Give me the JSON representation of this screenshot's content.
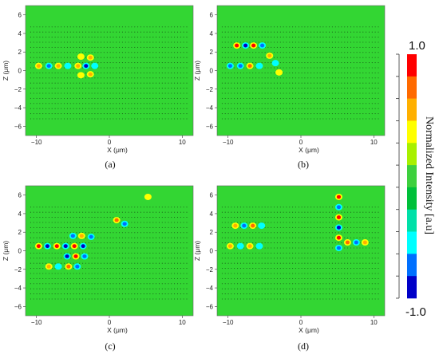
{
  "chart_data": [
    {
      "type": "heatmap",
      "caption": "(a)",
      "xlabel": "X (μm)",
      "ylabel": "Z (μm)",
      "xlim": [
        -11.5,
        11.5
      ],
      "ylim": [
        -7,
        7
      ],
      "xticks": [
        -10,
        0,
        10
      ],
      "yticks": [
        -6,
        -4,
        -2,
        0,
        2,
        4,
        6
      ],
      "xtick_labels": [
        "−10",
        "0",
        "10"
      ],
      "ytick_labels": [
        "−6",
        "−4",
        "−2",
        "0",
        "2",
        "4",
        "6"
      ],
      "hotspots": [
        {
          "x": -9.7,
          "z": 0.5,
          "v": 0.7
        },
        {
          "x": -8.3,
          "z": 0.5,
          "v": -0.7
        },
        {
          "x": -7.0,
          "z": 0.5,
          "v": 0.7
        },
        {
          "x": -5.7,
          "z": 0.5,
          "v": -0.6
        },
        {
          "x": -4.3,
          "z": 0.5,
          "v": 0.6
        },
        {
          "x": -3.2,
          "z": 0.5,
          "v": -0.9
        },
        {
          "x": -2.6,
          "z": 1.4,
          "v": 0.6
        },
        {
          "x": -2.6,
          "z": -0.4,
          "v": 0.6
        },
        {
          "x": -2.0,
          "z": 0.5,
          "v": -0.6
        },
        {
          "x": -3.9,
          "z": 1.5,
          "v": 0.4
        },
        {
          "x": -3.9,
          "z": -0.5,
          "v": 0.4
        }
      ]
    },
    {
      "type": "heatmap",
      "caption": "(b)",
      "xlabel": "X (μm)",
      "ylabel": "Z (μm)",
      "xlim": [
        -11.5,
        11.5
      ],
      "ylim": [
        -7,
        7
      ],
      "xticks": [
        -10,
        0,
        10
      ],
      "yticks": [
        -6,
        -4,
        -2,
        0,
        2,
        4,
        6
      ],
      "xtick_labels": [
        "−10",
        "0",
        "10"
      ],
      "ytick_labels": [
        "−6",
        "−4",
        "−2",
        "0",
        "2",
        "4",
        "6"
      ],
      "hotspots": [
        {
          "x": -9.7,
          "z": 0.5,
          "v": -0.8
        },
        {
          "x": -8.3,
          "z": 0.5,
          "v": -0.7
        },
        {
          "x": -7.0,
          "z": 0.5,
          "v": 0.8
        },
        {
          "x": -5.7,
          "z": 0.5,
          "v": -0.6
        },
        {
          "x": -8.8,
          "z": 2.7,
          "v": 0.9
        },
        {
          "x": -7.6,
          "z": 2.7,
          "v": -0.9
        },
        {
          "x": -6.5,
          "z": 2.7,
          "v": 0.9
        },
        {
          "x": -5.3,
          "z": 2.7,
          "v": -0.8
        },
        {
          "x": -4.3,
          "z": 1.6,
          "v": 0.7
        },
        {
          "x": -3.5,
          "z": 0.8,
          "v": -0.6
        },
        {
          "x": -3.0,
          "z": -0.2,
          "v": 0.5
        }
      ]
    },
    {
      "type": "heatmap",
      "caption": "(c)",
      "xlabel": "X (μm)",
      "ylabel": "Z (μm)",
      "xlim": [
        -11.5,
        11.5
      ],
      "ylim": [
        -7,
        7
      ],
      "xticks": [
        -10,
        0,
        10
      ],
      "yticks": [
        -6,
        -4,
        -2,
        0,
        2,
        4,
        6
      ],
      "xtick_labels": [
        "−10",
        "0",
        "10"
      ],
      "ytick_labels": [
        "−6",
        "−4",
        "−2",
        "0",
        "2",
        "4",
        "6"
      ],
      "hotspots": [
        {
          "x": -9.7,
          "z": 0.5,
          "v": 0.9
        },
        {
          "x": -8.5,
          "z": 0.5,
          "v": -0.9
        },
        {
          "x": -7.2,
          "z": 0.5,
          "v": 0.9
        },
        {
          "x": -6.0,
          "z": 0.5,
          "v": -0.9
        },
        {
          "x": -4.8,
          "z": 0.5,
          "v": 1.0
        },
        {
          "x": -3.6,
          "z": 0.5,
          "v": -0.9
        },
        {
          "x": -5.8,
          "z": -0.6,
          "v": -1.0
        },
        {
          "x": -4.6,
          "z": -0.6,
          "v": 0.9
        },
        {
          "x": -3.4,
          "z": -0.6,
          "v": -0.8
        },
        {
          "x": -8.3,
          "z": -1.7,
          "v": 0.6
        },
        {
          "x": -7.0,
          "z": -1.7,
          "v": -0.6
        },
        {
          "x": -5.6,
          "z": -1.7,
          "v": 0.8
        },
        {
          "x": -4.4,
          "z": -1.7,
          "v": -0.7
        },
        {
          "x": -5.0,
          "z": 1.6,
          "v": -0.7
        },
        {
          "x": -3.8,
          "z": 1.6,
          "v": 0.6
        },
        {
          "x": -2.5,
          "z": 1.5,
          "v": -0.7
        },
        {
          "x": 1.0,
          "z": 3.3,
          "v": 0.8
        },
        {
          "x": 2.1,
          "z": 2.9,
          "v": -0.7
        },
        {
          "x": 5.3,
          "z": 5.8,
          "v": 0.5
        }
      ]
    },
    {
      "type": "heatmap",
      "caption": "(d)",
      "xlabel": "X (μm)",
      "ylabel": "Z (μm)",
      "xlim": [
        -11.5,
        11.5
      ],
      "ylim": [
        -7,
        7
      ],
      "xticks": [
        -10,
        0,
        10
      ],
      "yticks": [
        -6,
        -4,
        -2,
        0,
        2,
        4,
        6
      ],
      "xtick_labels": [
        "−10",
        "0",
        "10"
      ],
      "ytick_labels": [
        "−6",
        "−4",
        "−2",
        "0",
        "2",
        "4",
        "6"
      ],
      "hotspots": [
        {
          "x": -9.7,
          "z": 0.5,
          "v": 0.6
        },
        {
          "x": -8.3,
          "z": 0.5,
          "v": -0.6
        },
        {
          "x": -7.0,
          "z": 0.5,
          "v": 0.7
        },
        {
          "x": -5.7,
          "z": 0.5,
          "v": -0.5
        },
        {
          "x": -9.0,
          "z": 2.7,
          "v": 0.7
        },
        {
          "x": -7.8,
          "z": 2.7,
          "v": -0.7
        },
        {
          "x": -6.6,
          "z": 2.7,
          "v": 0.8
        },
        {
          "x": -5.4,
          "z": 2.7,
          "v": -0.6
        },
        {
          "x": 5.2,
          "z": 5.8,
          "v": 0.9
        },
        {
          "x": 5.2,
          "z": 4.7,
          "v": -0.8
        },
        {
          "x": 5.2,
          "z": 3.6,
          "v": 0.9
        },
        {
          "x": 5.2,
          "z": 2.5,
          "v": -0.9
        },
        {
          "x": 5.2,
          "z": 1.4,
          "v": 0.9
        },
        {
          "x": 5.2,
          "z": 0.3,
          "v": -0.7
        },
        {
          "x": 6.4,
          "z": 0.9,
          "v": 0.8
        },
        {
          "x": 7.6,
          "z": 0.9,
          "v": -0.7
        },
        {
          "x": 8.8,
          "z": 0.9,
          "v": 0.7
        }
      ]
    }
  ],
  "colorbar": {
    "title": "Normalized Intensity [a.u]",
    "max_label": "1.0",
    "min_label": "-1.0",
    "range": [
      -1.0,
      1.0
    ],
    "colors": [
      "#ff0000",
      "#ff6a00",
      "#ffb000",
      "#ffff00",
      "#a8f000",
      "#3ed03e",
      "#00c03a",
      "#00e0a8",
      "#00ffff",
      "#0070ff",
      "#0000c8"
    ]
  }
}
